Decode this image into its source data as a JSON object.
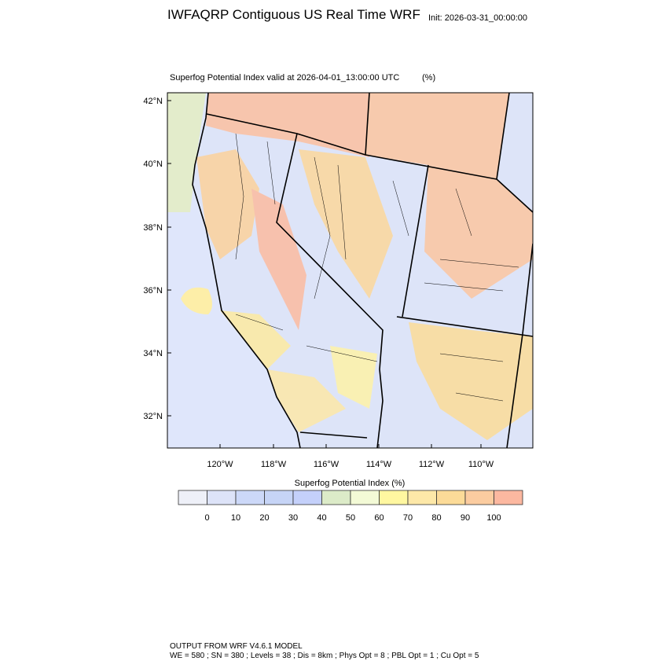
{
  "header": {
    "title": "IWFAQRP Contiguous US Real Time WRF",
    "init": "Init: 2026-03-31_00:00:00"
  },
  "map": {
    "subtitle": "Superfog Potential Index valid at 2026-04-01_13:00:00 UTC",
    "units": "(%)",
    "lat_labels": [
      "42°N",
      "40°N",
      "38°N",
      "36°N",
      "34°N",
      "32°N"
    ],
    "lon_labels": [
      "120°W",
      "118°W",
      "116°W",
      "114°W",
      "112°W",
      "110°W"
    ]
  },
  "colorbar": {
    "title": "Superfog Potential Index  (%)",
    "colors": [
      "#eef0f8",
      "#dde3f8",
      "#ccd8f8",
      "#c6d4f6",
      "#c4d0fa",
      "#dcebc8",
      "#f3fad6",
      "#fff7a0",
      "#fde8a8",
      "#fcdb98",
      "#fbcca0",
      "#fcb8a0"
    ],
    "labels": [
      "0",
      "10",
      "20",
      "30",
      "40",
      "50",
      "60",
      "70",
      "80",
      "90",
      "100"
    ]
  },
  "footer": {
    "line1": "OUTPUT FROM WRF V4.6.1 MODEL",
    "line2": "WE = 580 ; SN = 380 ; Levels = 38 ; Dis = 8km ; Phys Opt = 8 ; PBL Opt = 1 ; Cu Opt = 5"
  }
}
